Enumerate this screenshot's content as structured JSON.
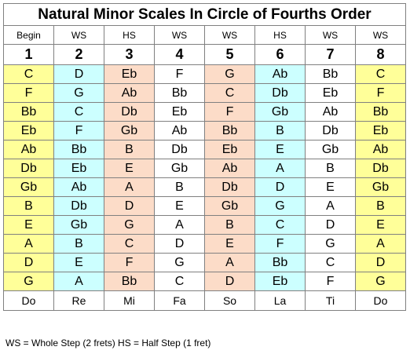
{
  "title": "Natural Minor Scales In Circle of Fourths Order",
  "steps": [
    "Begin",
    "WS",
    "HS",
    "WS",
    "WS",
    "HS",
    "WS",
    "WS"
  ],
  "degrees": [
    "1",
    "2",
    "3",
    "4",
    "5",
    "6",
    "7",
    "8"
  ],
  "rows": [
    [
      "C",
      "D",
      "Eb",
      "F",
      "G",
      "Ab",
      "Bb",
      "C"
    ],
    [
      "F",
      "G",
      "Ab",
      "Bb",
      "C",
      "Db",
      "Eb",
      "F"
    ],
    [
      "Bb",
      "C",
      "Db",
      "Eb",
      "F",
      "Gb",
      "Ab",
      "Bb"
    ],
    [
      "Eb",
      "F",
      "Gb",
      "Ab",
      "Bb",
      "B",
      "Db",
      "Eb"
    ],
    [
      "Ab",
      "Bb",
      "B",
      "Db",
      "Eb",
      "E",
      "Gb",
      "Ab"
    ],
    [
      "Db",
      "Eb",
      "E",
      "Gb",
      "Ab",
      "A",
      "B",
      "Db"
    ],
    [
      "Gb",
      "Ab",
      "A",
      "B",
      "Db",
      "D",
      "E",
      "Gb"
    ],
    [
      "B",
      "Db",
      "D",
      "E",
      "Gb",
      "G",
      "A",
      "B"
    ],
    [
      "E",
      "Gb",
      "G",
      "A",
      "B",
      "C",
      "D",
      "E"
    ],
    [
      "A",
      "B",
      "C",
      "D",
      "E",
      "F",
      "G",
      "A"
    ],
    [
      "D",
      "E",
      "F",
      "G",
      "A",
      "Bb",
      "C",
      "D"
    ],
    [
      "G",
      "A",
      "Bb",
      "C",
      "D",
      "Eb",
      "F",
      "G"
    ]
  ],
  "solfege": [
    "Do",
    "Re",
    "Mi",
    "Fa",
    "So",
    "La",
    "Ti",
    "Do"
  ],
  "footnote": "WS = Whole Step (2 frets) HS = Half Step (1 fret)",
  "column_colors": [
    "#ffff99",
    "#ccffff",
    "#fcdcc8",
    "#ffffff",
    "#fcdcc8",
    "#ccffff",
    "#ffffff",
    "#ffff99"
  ],
  "degree_color": "#0000cc"
}
